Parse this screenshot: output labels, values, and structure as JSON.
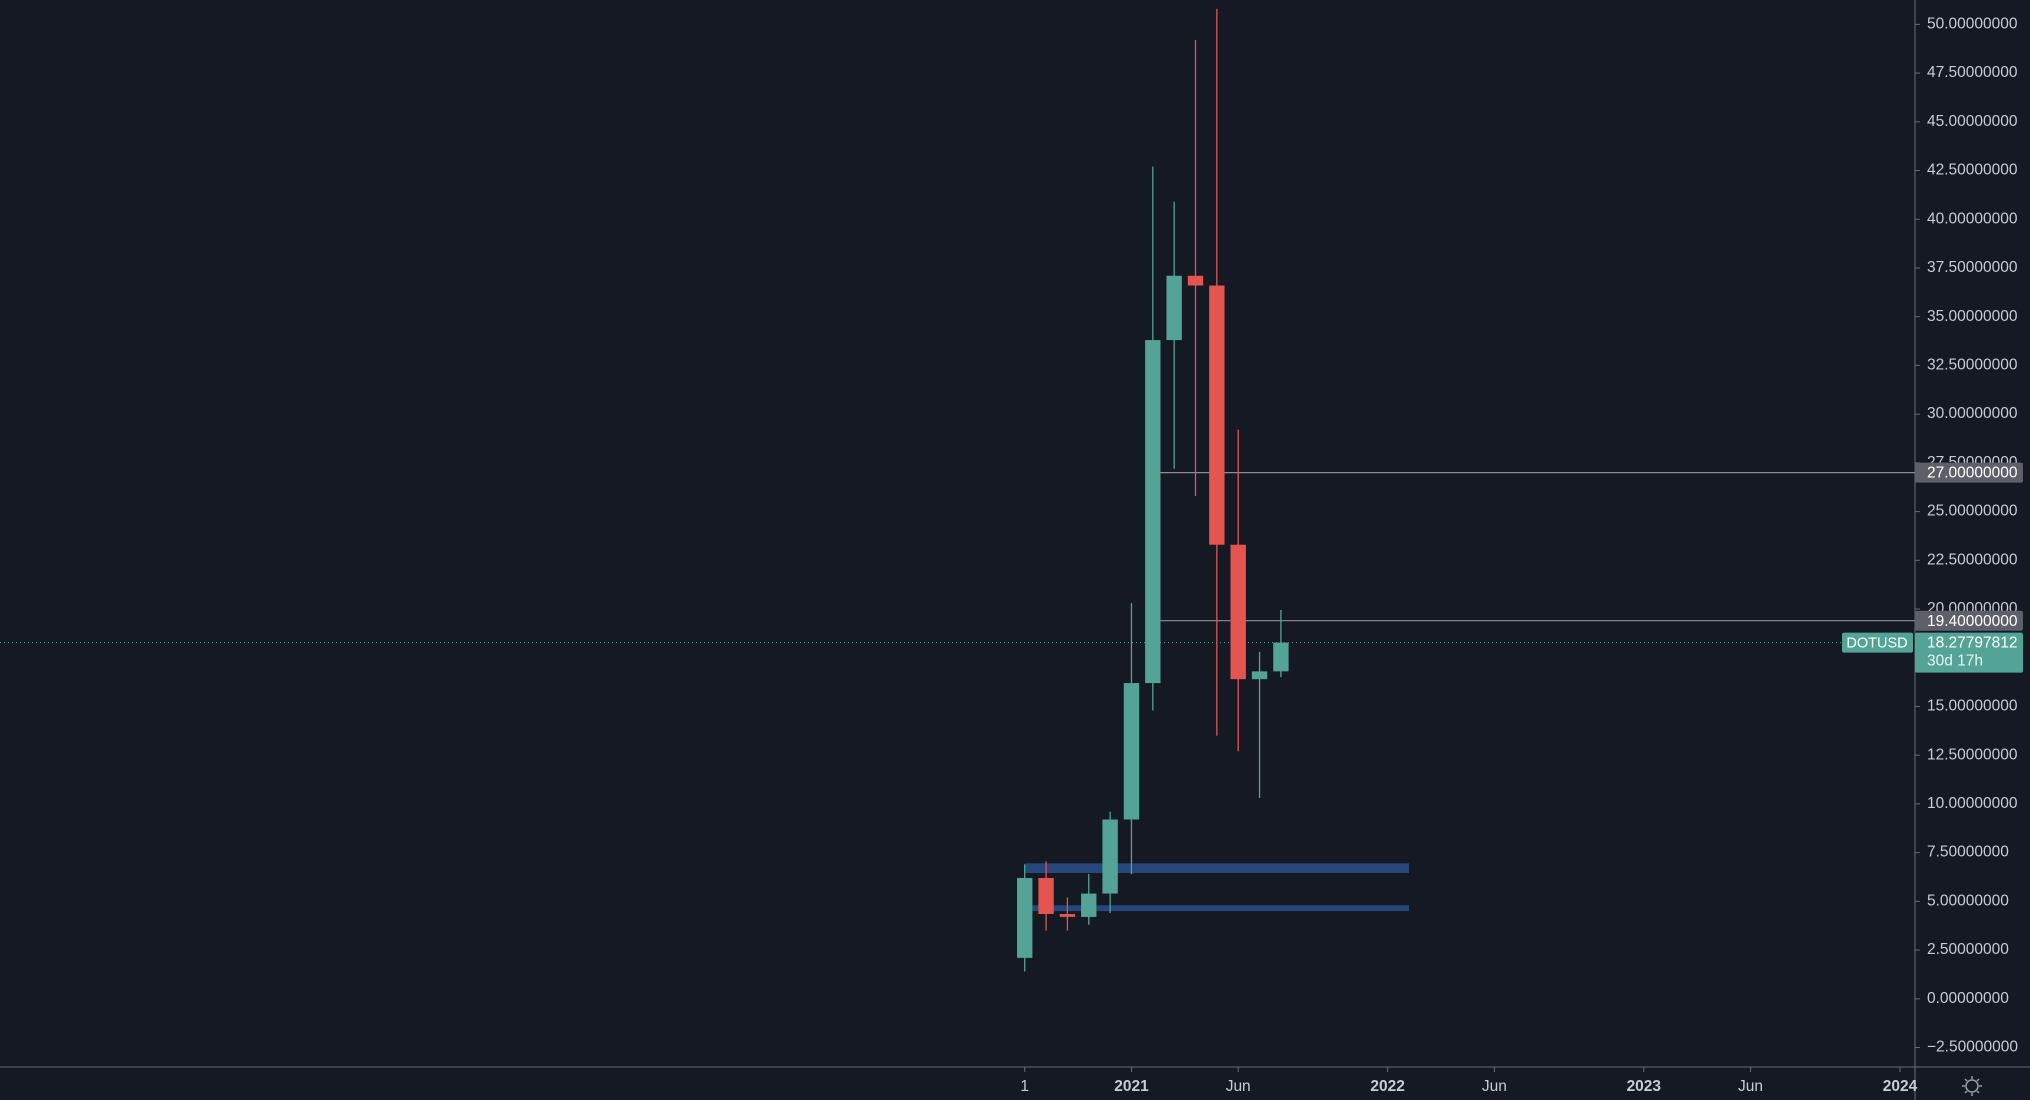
{
  "chart_data": {
    "type": "candlestick",
    "symbol": "DOTUSD",
    "x": [
      "2020-08",
      "2020-09",
      "2020-10",
      "2020-11",
      "2020-12",
      "2021-01",
      "2021-02",
      "2021-03",
      "2021-04",
      "2021-05",
      "2021-06",
      "2021-07",
      "2021-08"
    ],
    "open": [
      2.1,
      6.2,
      4.35,
      4.2,
      5.4,
      9.2,
      16.2,
      33.8,
      37.1,
      36.6,
      23.3,
      16.4,
      16.8
    ],
    "high": [
      6.9,
      7.05,
      5.2,
      6.4,
      9.6,
      20.3,
      42.7,
      40.9,
      49.2,
      50.8,
      29.2,
      17.8,
      19.95
    ],
    "low": [
      1.4,
      3.5,
      3.5,
      3.8,
      4.4,
      6.4,
      14.8,
      27.2,
      25.8,
      13.5,
      12.7,
      10.3,
      16.5
    ],
    "close": [
      6.2,
      4.35,
      4.2,
      5.4,
      9.2,
      16.2,
      33.8,
      37.1,
      36.6,
      23.3,
      16.4,
      16.8,
      18.27797812
    ],
    "up_color": "#53a497",
    "down_color": "#e5554f",
    "ylim": [
      -3.5,
      51.25
    ],
    "yticks": [
      {
        "value": -2.5,
        "label": "−2.50000000"
      },
      {
        "value": 0,
        "label": "0.00000000"
      },
      {
        "value": 2.5,
        "label": "2.50000000"
      },
      {
        "value": 5,
        "label": "5.00000000"
      },
      {
        "value": 7.5,
        "label": "7.50000000"
      },
      {
        "value": 10,
        "label": "10.00000000"
      },
      {
        "value": 12.5,
        "label": "12.50000000"
      },
      {
        "value": 15,
        "label": "15.00000000"
      },
      {
        "value": 17.5,
        "label": "17.50000000"
      },
      {
        "value": 20,
        "label": "20.00000000"
      },
      {
        "value": 22.5,
        "label": "22.50000000"
      },
      {
        "value": 25,
        "label": "25.00000000"
      },
      {
        "value": 27.5,
        "label": "27.50000000"
      },
      {
        "value": 30,
        "label": "30.00000000"
      },
      {
        "value": 32.5,
        "label": "32.50000000"
      },
      {
        "value": 35,
        "label": "35.00000000"
      },
      {
        "value": 37.5,
        "label": "37.50000000"
      },
      {
        "value": 40,
        "label": "40.00000000"
      },
      {
        "value": 42.5,
        "label": "42.50000000"
      },
      {
        "value": 45,
        "label": "45.00000000"
      },
      {
        "value": 47.5,
        "label": "47.50000000"
      },
      {
        "value": 50,
        "label": "50.00000000"
      }
    ],
    "xlim": [
      "2016-08",
      "2024-01"
    ],
    "xticks": [
      {
        "value": "2020-08",
        "label": "1"
      },
      {
        "value": "2021-01",
        "label": "2021"
      },
      {
        "value": "2021-06",
        "label": "Jun"
      },
      {
        "value": "2022-01",
        "label": "2022"
      },
      {
        "value": "2022-06",
        "label": "Jun"
      },
      {
        "value": "2023-01",
        "label": "2023"
      },
      {
        "value": "2023-06",
        "label": "Jun"
      },
      {
        "value": "2024-01",
        "label": "2024"
      }
    ],
    "levels": {
      "values": [
        27,
        19.4
      ],
      "value_labels": [
        "27.00000000",
        "19.40000000"
      ],
      "start": "2021-02",
      "color": "#8a8d96"
    },
    "zones": [
      {
        "low": 6.45,
        "high": 6.95,
        "start": "2020-08",
        "end": "2022-02"
      },
      {
        "low": 4.5,
        "high": 4.8,
        "start": "2020-08",
        "end": "2022-02"
      }
    ],
    "zone_color": "#27467a",
    "last_price": {
      "value": 18.27797812,
      "label": "18.27797812",
      "countdown": "30d 17h"
    }
  }
}
